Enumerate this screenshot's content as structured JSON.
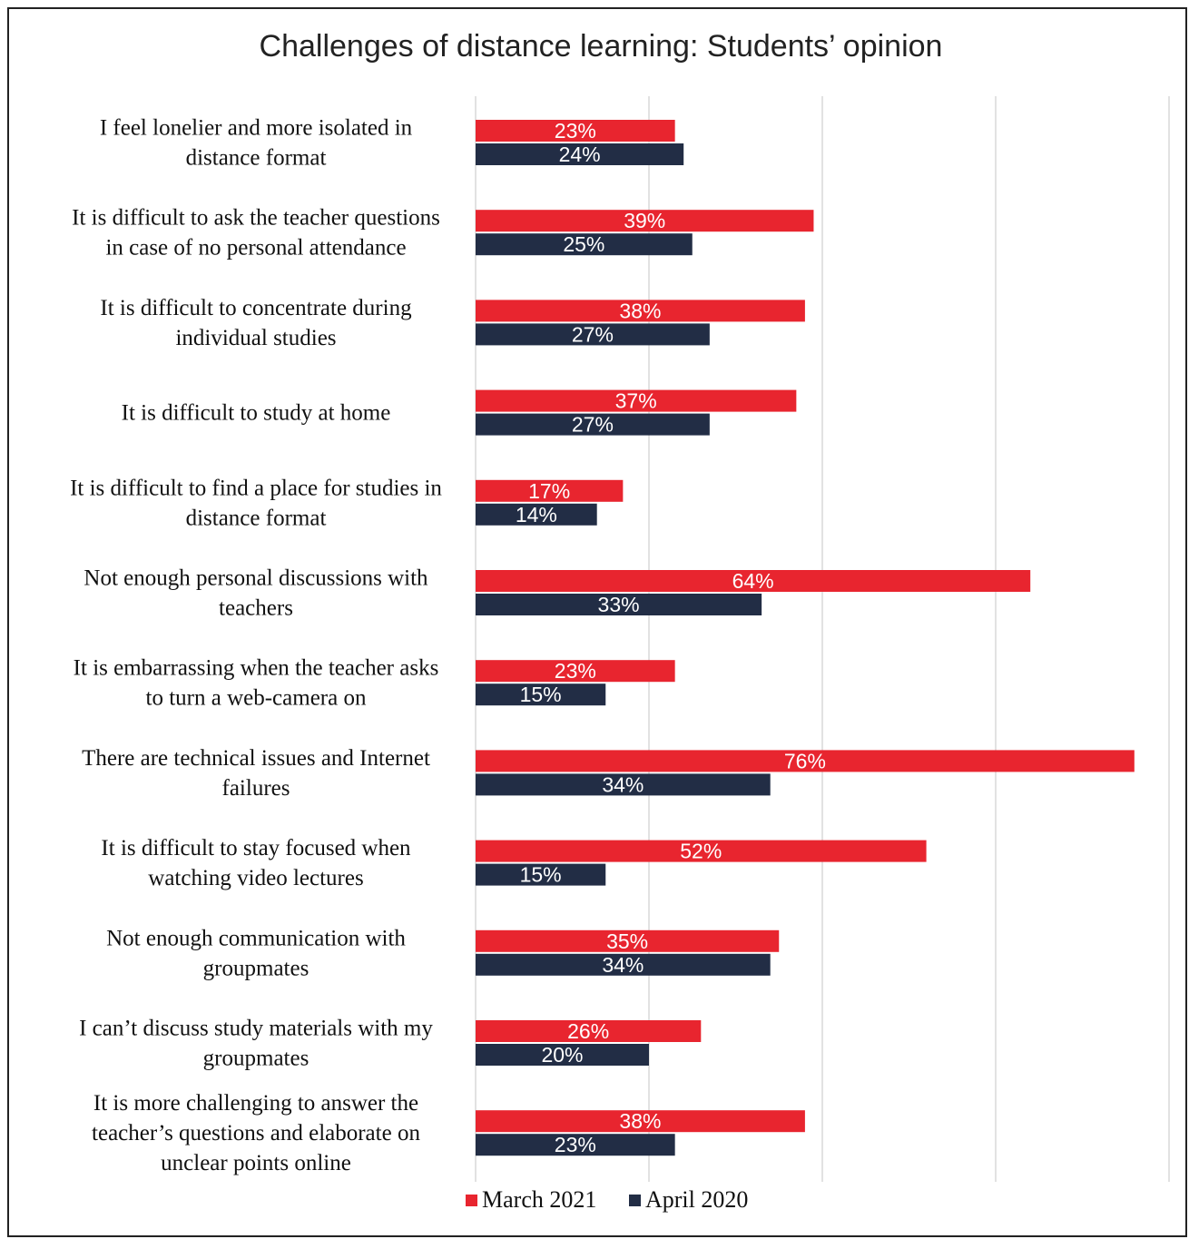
{
  "chart_data": {
    "type": "bar",
    "orientation": "horizontal",
    "title": "Challenges of distance learning: Students’ opinion",
    "categories": [
      [
        "I feel lonelier and more isolated in",
        "distance format"
      ],
      [
        "It is difficult to ask the teacher questions",
        "in case of no personal attendance"
      ],
      [
        "It is difficult to concentrate during",
        "individual studies"
      ],
      [
        "It is difficult to study at home"
      ],
      [
        "It is difficult to find a place for studies in",
        "distance format"
      ],
      [
        "Not enough personal discussions with",
        "teachers"
      ],
      [
        "It is embarrassing when the teacher asks",
        "to turn a web-camera on"
      ],
      [
        "There are technical issues and Internet",
        "failures"
      ],
      [
        "It is difficult to stay focused when",
        "watching video lectures"
      ],
      [
        "Not enough communication with",
        "groupmates"
      ],
      [
        "I can’t discuss study materials with my",
        "groupmates"
      ],
      [
        "It is more challenging to answer the",
        "teacher’s questions and elaborate on",
        "unclear points online"
      ]
    ],
    "series": [
      {
        "name": "March 2021",
        "color": "#e8252f",
        "values": [
          23,
          39,
          38,
          37,
          17,
          64,
          23,
          76,
          52,
          35,
          26,
          38
        ],
        "labels": [
          "23%",
          "39%",
          "38%",
          "37%",
          "17%",
          "64%",
          "23%",
          "76%",
          "52%",
          "35%",
          "26%",
          "38%"
        ]
      },
      {
        "name": "April 2020",
        "color": "#222d45",
        "values": [
          24,
          25,
          27,
          27,
          14,
          33,
          15,
          34,
          15,
          34,
          20,
          23
        ],
        "labels": [
          "24%",
          "25%",
          "27%",
          "27%",
          "14%",
          "33%",
          "15%",
          "34%",
          "15%",
          "34%",
          "20%",
          "23%"
        ]
      }
    ],
    "xlim": [
      0,
      80
    ],
    "grid": true,
    "gridline_color": "#d9d9d9",
    "legend_position": "bottom"
  }
}
